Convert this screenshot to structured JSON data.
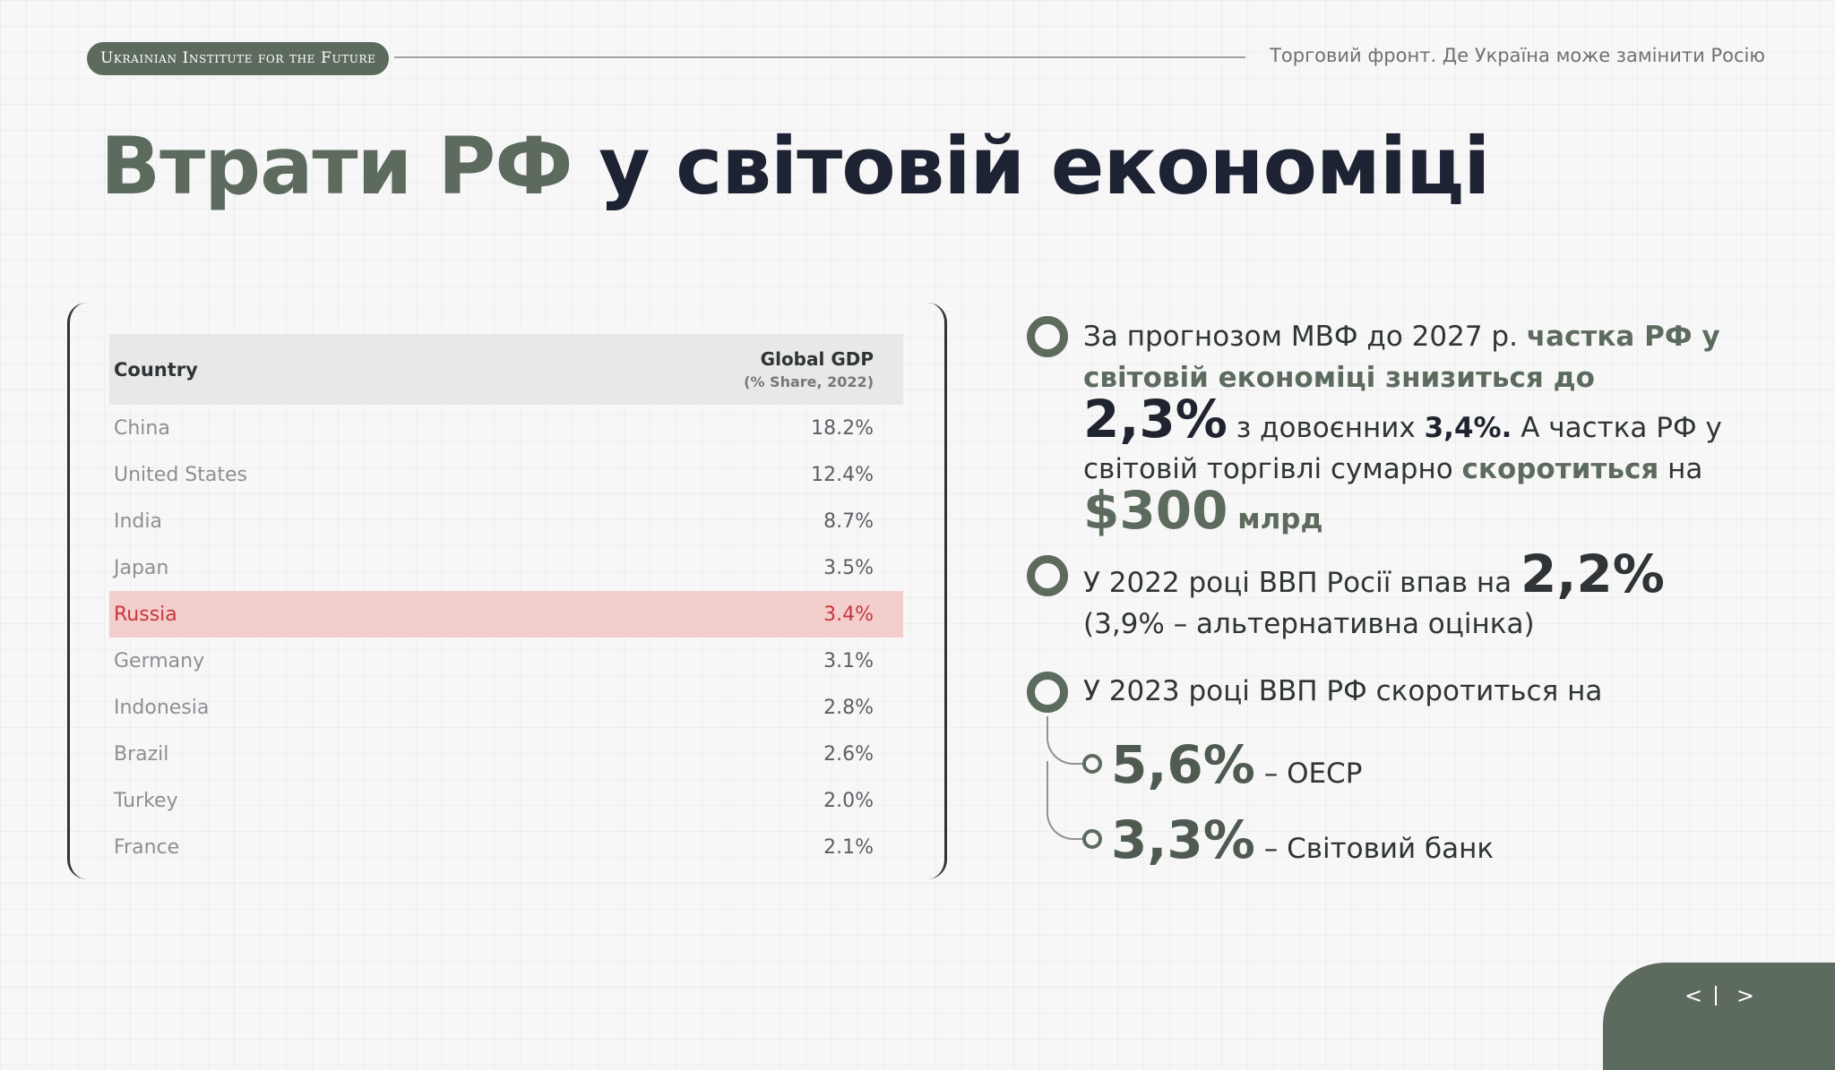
{
  "header": {
    "brand": "Ukrainian Institute for the Future",
    "subtitle": "Торговий фронт. Де Україна може замінити Росію"
  },
  "title": {
    "accent": "Втрати РФ",
    "rest": "у світовій економіці"
  },
  "table": {
    "col_country": "Country",
    "col_gdp": "Global GDP",
    "col_gdp_sub": "(% Share, 2022)",
    "rows": [
      {
        "country": "China",
        "value": "18.2%"
      },
      {
        "country": "United States",
        "value": "12.4%"
      },
      {
        "country": "India",
        "value": "8.7%"
      },
      {
        "country": "Japan",
        "value": "3.5%"
      },
      {
        "country": "Russia",
        "value": "3.4%"
      },
      {
        "country": "Germany",
        "value": "3.1%"
      },
      {
        "country": "Indonesia",
        "value": "2.8%"
      },
      {
        "country": "Brazil",
        "value": "2.6%"
      },
      {
        "country": "Turkey",
        "value": "2.0%"
      },
      {
        "country": "France",
        "value": "2.1%"
      }
    ]
  },
  "bullets": {
    "b1": {
      "t1": "За прогнозом МВФ до 2027 р. ",
      "t2": "частка РФ у світовій економіці знизиться до",
      "t3": "2,3%",
      "t4": " з довоєнних ",
      "t5": "3,4%.",
      "t6": " А частка РФ у світовій торгівлі сумарно ",
      "t7": "скоротиться",
      "t8": " на ",
      "t9": "$300",
      "t10": " млрд"
    },
    "b2": {
      "t1": "У 2022 році ВВП Росії впав на ",
      "t2": "2,2%",
      "t3": "(3,9% – альтернативна оцінка)"
    },
    "b3": {
      "t1": "У 2023 році ВВП РФ скоротиться на",
      "s1_value": "5,6%",
      "s1_label": " – ОЕСР",
      "s2_value": "3,3%",
      "s2_label": " – Світовий банк"
    }
  },
  "nav": {
    "prev": "<",
    "next": ">"
  }
}
